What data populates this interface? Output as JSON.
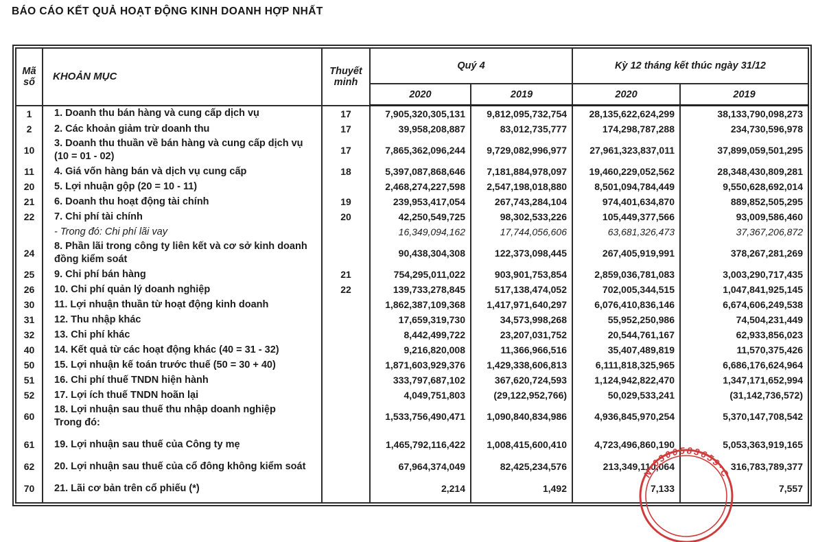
{
  "title": "BÁO CÁO KẾT QUẢ HOẠT ĐỘNG KINH DOANH HỢP NHẤT",
  "table": {
    "headers": {
      "code": "Mã\nsố",
      "item": "KHOẢN MỤC",
      "notes": "Thuyết\nminh",
      "q4_group": "Quý 4",
      "fy_group": "Kỳ 12 tháng kết thúc ngày 31/12",
      "years": [
        "2020",
        "2019",
        "2020",
        "2019"
      ]
    },
    "rows": [
      {
        "code": "1",
        "item": "1. Doanh thu bán hàng và cung cấp dịch vụ",
        "note": "17",
        "q4_2020": "7,905,320,305,131",
        "q4_2019": "9,812,095,732,754",
        "fy_2020": "28,135,622,624,299",
        "fy_2019": "38,133,790,098,273"
      },
      {
        "code": "2",
        "item": "2. Các khoản giảm trừ doanh thu",
        "note": "17",
        "q4_2020": "39,958,208,887",
        "q4_2019": "83,012,735,777",
        "fy_2020": "174,298,787,288",
        "fy_2019": "234,730,596,978"
      },
      {
        "code": "10",
        "item": "3. Doanh thu thuần về bán hàng và cung cấp dịch vụ\n(10 = 01 - 02)",
        "note": "17",
        "q4_2020": "7,865,362,096,244",
        "q4_2019": "9,729,082,996,977",
        "fy_2020": "27,961,323,837,011",
        "fy_2019": "37,899,059,501,295"
      },
      {
        "code": "11",
        "item": "4. Giá vốn hàng bán và dịch vụ cung cấp",
        "note": "18",
        "q4_2020": "5,397,087,868,646",
        "q4_2019": "7,181,884,978,097",
        "fy_2020": "19,460,229,052,562",
        "fy_2019": "28,348,430,809,281"
      },
      {
        "code": "20",
        "item": "5. Lợi nhuận gộp (20 = 10 - 11)",
        "note": "",
        "q4_2020": "2,468,274,227,598",
        "q4_2019": "2,547,198,018,880",
        "fy_2020": "8,501,094,784,449",
        "fy_2019": "9,550,628,692,014"
      },
      {
        "code": "21",
        "item": "6. Doanh thu hoạt động tài chính",
        "note": "19",
        "q4_2020": "239,953,417,054",
        "q4_2019": "267,743,284,104",
        "fy_2020": "974,401,634,870",
        "fy_2019": "889,852,505,295"
      },
      {
        "code": "22",
        "item": "7. Chi phí tài chính",
        "note": "20",
        "q4_2020": "42,250,549,725",
        "q4_2019": "98,302,533,226",
        "fy_2020": "105,449,377,566",
        "fy_2019": "93,009,586,460"
      },
      {
        "code": "",
        "item": "- Trong đó: Chi phí lãi vay",
        "note": "",
        "style": "sub-italic",
        "q4_2020": "16,349,094,162",
        "q4_2019": "17,744,056,606",
        "fy_2020": "63,681,326,473",
        "fy_2019": "37,367,206,872"
      },
      {
        "code": "24",
        "item": "8. Phần lãi trong công ty liên kết và cơ sở kinh doanh\nđồng kiểm soát",
        "note": "",
        "q4_2020": "90,438,304,308",
        "q4_2019": "122,373,098,445",
        "fy_2020": "267,405,919,991",
        "fy_2019": "378,267,281,269"
      },
      {
        "code": "25",
        "item": "9. Chi phí bán hàng",
        "note": "21",
        "q4_2020": "754,295,011,022",
        "q4_2019": "903,901,753,854",
        "fy_2020": "2,859,036,781,083",
        "fy_2019": "3,003,290,717,435"
      },
      {
        "code": "26",
        "item": "10. Chi phí quản lý doanh nghiệp",
        "note": "22",
        "q4_2020": "139,733,278,845",
        "q4_2019": "517,138,474,052",
        "fy_2020": "702,005,344,515",
        "fy_2019": "1,047,841,925,145"
      },
      {
        "code": "30",
        "item": "11. Lợi nhuận thuần từ hoạt động kinh doanh",
        "note": "",
        "q4_2020": "1,862,387,109,368",
        "q4_2019": "1,417,971,640,297",
        "fy_2020": "6,076,410,836,146",
        "fy_2019": "6,674,606,249,538"
      },
      {
        "code": "31",
        "item": "12. Thu nhập khác",
        "note": "",
        "q4_2020": "17,659,319,730",
        "q4_2019": "34,573,998,268",
        "fy_2020": "55,952,250,986",
        "fy_2019": "74,504,231,449"
      },
      {
        "code": "32",
        "item": "13. Chi phí khác",
        "note": "",
        "q4_2020": "8,442,499,722",
        "q4_2019": "23,207,031,752",
        "fy_2020": "20,544,761,167",
        "fy_2019": "62,933,856,023"
      },
      {
        "code": "40",
        "item": "14. Kết quả từ các hoạt động khác (40 = 31 - 32)",
        "note": "",
        "q4_2020": "9,216,820,008",
        "q4_2019": "11,366,966,516",
        "fy_2020": "35,407,489,819",
        "fy_2019": "11,570,375,426"
      },
      {
        "code": "50",
        "item": "15. Lợi nhuận kế toán trước thuế (50 = 30 + 40)",
        "note": "",
        "q4_2020": "1,871,603,929,376",
        "q4_2019": "1,429,338,606,813",
        "fy_2020": "6,111,818,325,965",
        "fy_2019": "6,686,176,624,964"
      },
      {
        "code": "51",
        "item": "16. Chi phí thuế TNDN hiện hành",
        "note": "",
        "q4_2020": "333,797,687,102",
        "q4_2019": "367,620,724,593",
        "fy_2020": "1,124,942,822,470",
        "fy_2019": "1,347,171,652,994"
      },
      {
        "code": "52",
        "item": "17. Lợi ích thuế TNDN hoãn lại",
        "note": "",
        "q4_2020": "4,049,751,803",
        "q4_2019": "(29,122,952,766)",
        "fy_2020": "50,029,533,241",
        "fy_2019": "(31,142,736,572)"
      },
      {
        "code": "60",
        "item": "18. Lợi nhuận sau thuế thu nhập doanh nghiệp\nTrong đó:",
        "note": "",
        "q4_2020": "1,533,756,490,471",
        "q4_2019": "1,090,840,834,986",
        "fy_2020": "4,936,845,970,254",
        "fy_2019": "5,370,147,708,542"
      },
      {
        "code": "61",
        "item": "19. Lợi nhuận sau thuế của Công ty mẹ",
        "note": "",
        "q4_2020": "1,465,792,116,422",
        "q4_2019": "1,008,415,600,410",
        "fy_2020": "4,723,496,860,190",
        "fy_2019": "5,053,363,919,165"
      },
      {
        "code": "62",
        "item": "20. Lợi nhuận sau thuế của cổ đông không kiểm soát",
        "note": "",
        "q4_2020": "67,964,374,049",
        "q4_2019": "82,425,234,576",
        "fy_2020": "213,349,110,064",
        "fy_2019": "316,783,789,377"
      },
      {
        "code": "70",
        "item": "21. Lãi cơ bản trên cổ phiếu (*)",
        "note": "",
        "q4_2020": "2,214",
        "q4_2019": "1,492",
        "fy_2020": "7,133",
        "fy_2019": "7,557"
      }
    ]
  },
  "stamp": {
    "text": "N·0300583659·C",
    "color": "#cf3b3b"
  }
}
